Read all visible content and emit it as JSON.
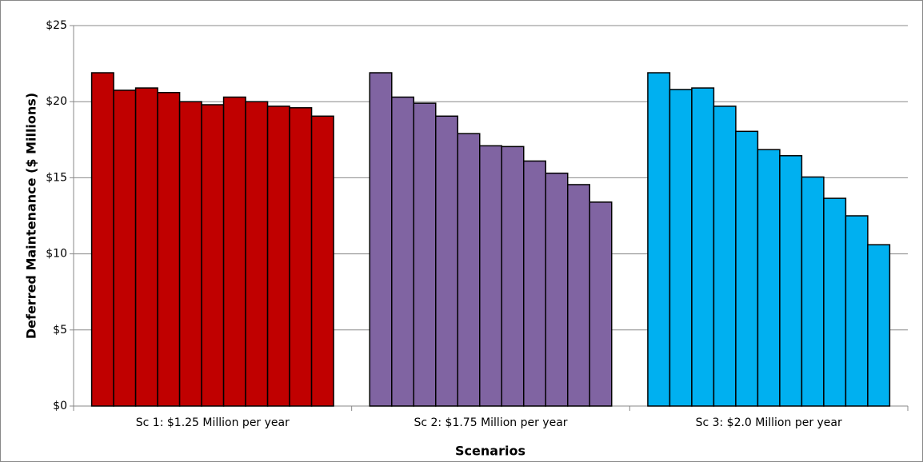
{
  "chart_data": {
    "type": "bar",
    "categories": [
      "Sc 1: $1.25 Million per year",
      "Sc 2: $1.75 Million per year",
      "Sc 3: $2.0 Million per year"
    ],
    "values": [
      [
        21.9,
        20.75,
        20.9,
        20.6,
        20.0,
        19.8,
        20.3,
        20.0,
        19.7,
        19.6,
        19.05
      ],
      [
        21.9,
        20.3,
        19.9,
        19.05,
        17.9,
        17.1,
        17.05,
        16.1,
        15.3,
        14.55,
        13.4
      ],
      [
        21.9,
        20.8,
        20.9,
        19.7,
        18.05,
        16.85,
        16.45,
        15.05,
        13.65,
        12.5,
        10.6
      ]
    ],
    "colors": [
      "#c00000",
      "#8064a2",
      "#00b0f0"
    ],
    "xlabel": "Scenarios",
    "ylabel": "Deferred Maintenance ($ Millions)",
    "ylim": [
      0,
      25
    ],
    "yticks": [
      {
        "value": 0,
        "label": "$0"
      },
      {
        "value": 5,
        "label": "$5"
      },
      {
        "value": 10,
        "label": "$10"
      },
      {
        "value": 15,
        "label": "$15"
      },
      {
        "value": 20,
        "label": "$20"
      },
      {
        "value": 25,
        "label": "$25"
      }
    ],
    "grid": true
  }
}
